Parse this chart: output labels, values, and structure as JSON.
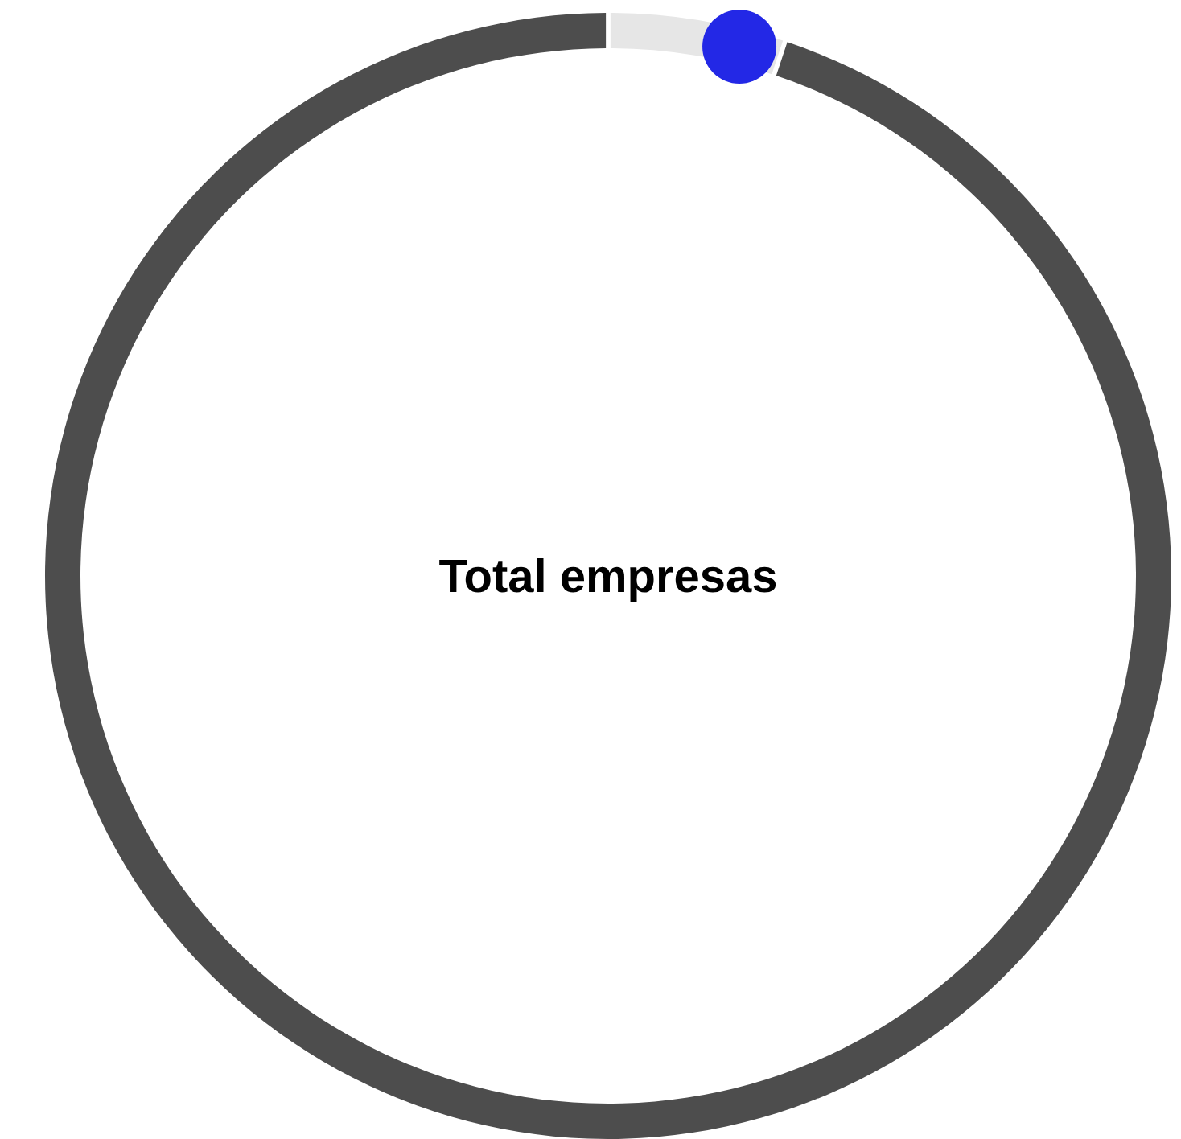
{
  "chart_data": {
    "type": "donut",
    "title": "Total empresas",
    "categories": [
      null,
      null
    ],
    "values": [
      5,
      95
    ],
    "colors": [
      "#e6e6e6",
      "#4d4d4d"
    ]
  }
}
